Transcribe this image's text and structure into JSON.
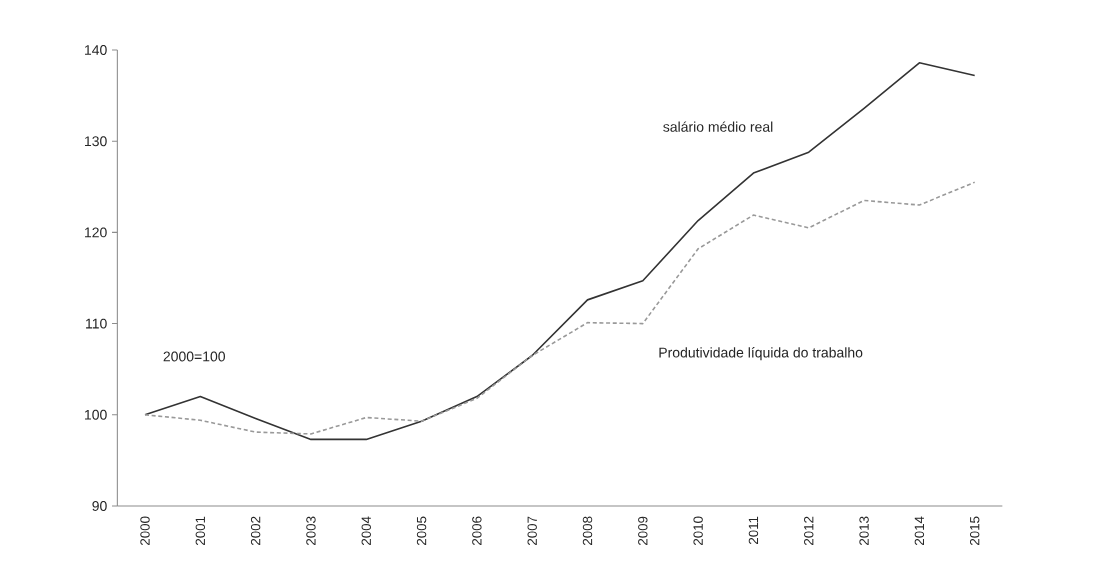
{
  "chart_data": {
    "type": "line",
    "categories": [
      "2000",
      "2001",
      "2002",
      "2003",
      "2004",
      "2005",
      "2006",
      "2007",
      "2008",
      "2009",
      "2010",
      "2011",
      "2012",
      "2013",
      "2014",
      "2015"
    ],
    "series": [
      {
        "name": "salário médio real",
        "color": "#333333",
        "line_style": "solid",
        "values": [
          100,
          102,
          99.6,
          97.3,
          97.3,
          99.3,
          102,
          106.5,
          112.6,
          114.7,
          121.3,
          126.5,
          128.8,
          133.6,
          138.6,
          137.2
        ]
      },
      {
        "name": "Produtividade líquida do trabalho",
        "color": "#999999",
        "line_style": "dashed",
        "values": [
          100,
          99.4,
          98.1,
          97.9,
          99.7,
          99.3,
          101.8,
          106.5,
          110.1,
          110.0,
          118.2,
          121.9,
          120.5,
          123.5,
          123.0,
          125.5
        ]
      }
    ],
    "ylim": [
      90,
      140
    ],
    "yticks": [
      90,
      100,
      110,
      120,
      130,
      140
    ],
    "annotations": [
      "2000=100"
    ],
    "grid": false,
    "legend": false,
    "marker": "none"
  }
}
